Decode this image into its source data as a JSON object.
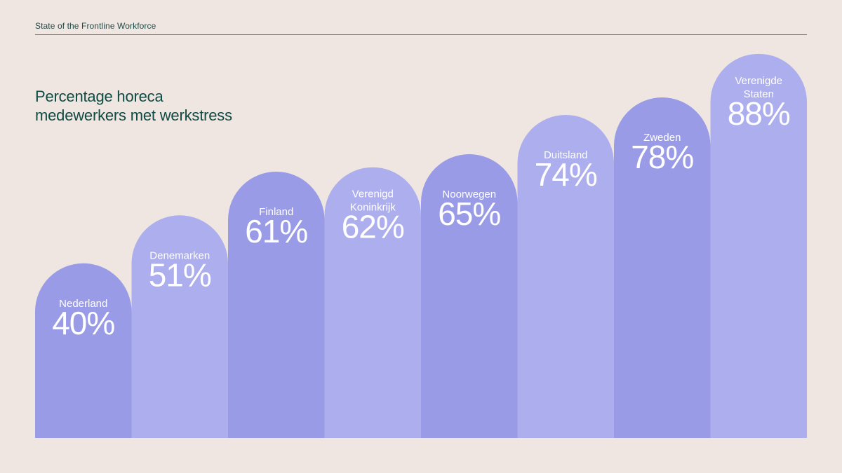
{
  "header": {
    "text": "State of the Frontline Workforce"
  },
  "chart_data": {
    "type": "bar",
    "title_lines": [
      "Percentage horeca",
      "medewerkers met werkstress"
    ],
    "categories": [
      "Nederland",
      "Denemarken",
      "Finland",
      "Verenigd Koninkrijk",
      "Noorwegen",
      "Duitsland",
      "Zweden",
      "Verenigde Staten"
    ],
    "category_label_lines": [
      [
        "Nederland"
      ],
      [
        "Denemarken"
      ],
      [
        "Finland"
      ],
      [
        "Verenigd",
        "Koninkrijk"
      ],
      [
        "Noorwegen"
      ],
      [
        "Duitsland"
      ],
      [
        "Zweden"
      ],
      [
        "Verenigde",
        "Staten"
      ]
    ],
    "values": [
      40,
      51,
      61,
      62,
      65,
      74,
      78,
      88
    ],
    "value_labels": [
      "40%",
      "51%",
      "61%",
      "62%",
      "65%",
      "74%",
      "78%",
      "88%"
    ],
    "ylim": [
      0,
      100
    ],
    "grid": false,
    "colors": [
      "#9a9be6",
      "#adaeed"
    ]
  }
}
